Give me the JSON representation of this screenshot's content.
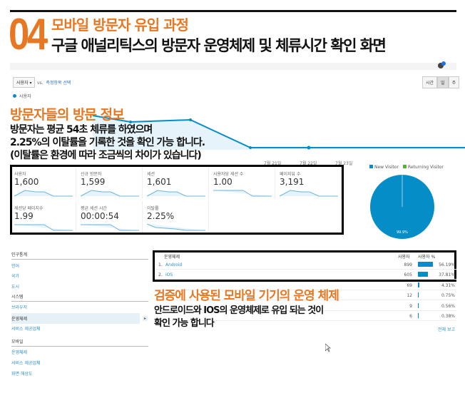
{
  "header": {
    "number": "04",
    "title": "모바일 방문자 유입 과정",
    "subtitle": "구글 애널리틱스의 방문자 운영체제 및 체류시간 확인 화면"
  },
  "toolbar": {
    "metric_select": "사용자 ▾",
    "vs_label": "vs.",
    "compare_link": "측정항목 선택",
    "time_buttons": [
      "시간",
      "일",
      "주"
    ],
    "active_time": "일"
  },
  "chart": {
    "legend": "사용자",
    "color": "#058dc7",
    "x_labels": [
      "7월 21일",
      "7월 22일",
      "7월 23일"
    ]
  },
  "overlay1": {
    "title": "방문자들의 방문 정보",
    "lines": [
      "방문자는 평균 54초 체류를 하였으며",
      "2.25%의 이탈률을 기록한 것을 확인 가능 합니다.",
      "(이탈률은 환경에 따라 조금씩의 차이가 있습니다)"
    ]
  },
  "metrics": [
    {
      "label": "사용자",
      "value": "1,600"
    },
    {
      "label": "신규 방문자",
      "value": "1,599"
    },
    {
      "label": "세션",
      "value": "1,601"
    },
    {
      "label": "사용자당 세션 수",
      "value": "1.00"
    },
    {
      "label": "페이지뷰 수",
      "value": "3,191"
    },
    {
      "label": "세션당 페이지수",
      "value": "1.99"
    },
    {
      "label": "평균 세션 시간",
      "value": "00:00:54"
    },
    {
      "label": "이탈률",
      "value": "2.25%"
    }
  ],
  "pie": {
    "legend": [
      "New Visitor",
      "Returning Visitor"
    ],
    "colors": [
      "#058dc7",
      "#50b432"
    ],
    "slice_label": "99.9%",
    "new_share": 99.9
  },
  "sidebar": {
    "sections": [
      {
        "title": "인구통계",
        "items": [
          "언어",
          "국가",
          "도시"
        ]
      },
      {
        "title": "시스템",
        "items": [
          "브라우저",
          "운영체제",
          "서비스 제공업체"
        ]
      },
      {
        "title": "모바일",
        "items": [
          "운영체제",
          "서비스 제공업체",
          "화면 해상도"
        ]
      }
    ],
    "active": "운영체제"
  },
  "table": {
    "headers": [
      "운영체제",
      "사용자",
      "사용자 %"
    ],
    "rows": [
      {
        "rank": "1.",
        "name": "Android",
        "users": "899",
        "pct": "56.19%",
        "share": 56.19
      },
      {
        "rank": "2.",
        "name": "iOS",
        "users": "605",
        "pct": "37.81%",
        "share": 37.81
      },
      {
        "rank": "",
        "name": "",
        "users": "69",
        "pct": "4.31%",
        "share": 4.31
      },
      {
        "rank": "",
        "name": "",
        "users": "12",
        "pct": "0.75%",
        "share": 0.75
      },
      {
        "rank": "",
        "name": "",
        "users": "9",
        "pct": "0.56%",
        "share": 0.56
      },
      {
        "rank": "",
        "name": "",
        "users": "6",
        "pct": "0.38%",
        "share": 0.38
      }
    ],
    "full_report": "전체 보고"
  },
  "overlay2": {
    "title": "검증에 사용된 모바일 기기의 운영 체제",
    "lines": [
      "안드로이드와 IOS의 운영체제로 유입 되는 것이",
      "확인 가능 합니다"
    ]
  }
}
